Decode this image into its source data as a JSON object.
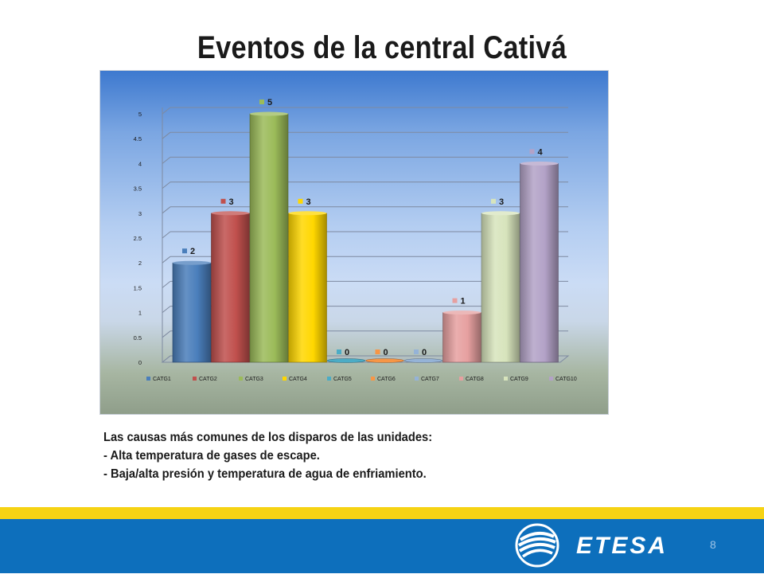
{
  "slide": {
    "title": "Eventos de la central Cativá",
    "page_number": "8",
    "notes": [
      "Las causas más comunes de los disparos de las unidades:",
      "- Alta temperatura de gases de escape.",
      "- Baja/alta presión y temperatura de agua de enfriamiento."
    ],
    "logo_text": "ETESA"
  },
  "colors": {
    "yellow_band": "#f6d313",
    "blue_band": "#0d6fbc"
  },
  "chart_data": {
    "type": "bar",
    "title": "",
    "xlabel": "",
    "ylabel": "",
    "ylim": [
      0,
      5
    ],
    "yticks": [
      "0",
      "0.5",
      "1",
      "1.5",
      "2",
      "2.5",
      "3",
      "3.5",
      "4",
      "4.5",
      "5"
    ],
    "grid": true,
    "legend_position": "bottom",
    "series": [
      {
        "name": "CATG1",
        "values": [
          2
        ],
        "color": "#4a7ebb"
      },
      {
        "name": "CATG2",
        "values": [
          3
        ],
        "color": "#c0504d"
      },
      {
        "name": "CATG3",
        "values": [
          5
        ],
        "color": "#9bbb59"
      },
      {
        "name": "CATG4",
        "values": [
          3
        ],
        "color": "#ffd700"
      },
      {
        "name": "CATG5",
        "values": [
          0
        ],
        "color": "#4bacc6"
      },
      {
        "name": "CATG6",
        "values": [
          0
        ],
        "color": "#f79646"
      },
      {
        "name": "CATG7",
        "values": [
          0
        ],
        "color": "#95b3d7"
      },
      {
        "name": "CATG8",
        "values": [
          1
        ],
        "color": "#e6a0a0"
      },
      {
        "name": "CATG9",
        "values": [
          3
        ],
        "color": "#d7e4bc"
      },
      {
        "name": "CATG10",
        "values": [
          4
        ],
        "color": "#b3a2c7"
      }
    ]
  }
}
